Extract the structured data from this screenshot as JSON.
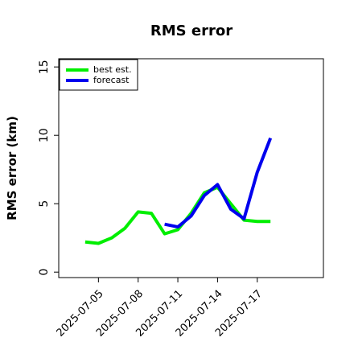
{
  "chart_data": {
    "type": "line",
    "title": "RMS error",
    "ylabel": "RMS error (km)",
    "x": [
      "2025-07-04",
      "2025-07-05",
      "2025-07-06",
      "2025-07-07",
      "2025-07-08",
      "2025-07-09",
      "2025-07-10",
      "2025-07-11",
      "2025-07-12",
      "2025-07-13",
      "2025-07-14",
      "2025-07-15",
      "2025-07-16",
      "2025-07-17",
      "2025-07-18"
    ],
    "series": [
      {
        "name": "best est.",
        "color": "#00ee00",
        "values": [
          2.2,
          2.1,
          2.5,
          3.2,
          4.4,
          4.3,
          2.8,
          3.1,
          4.3,
          5.8,
          6.2,
          5.0,
          3.8,
          3.7,
          3.7
        ]
      },
      {
        "name": "forecast",
        "color": "#0000ee",
        "values": [
          null,
          null,
          null,
          null,
          null,
          null,
          3.5,
          3.3,
          4.1,
          5.6,
          6.4,
          4.6,
          3.9,
          7.3,
          9.8
        ]
      }
    ],
    "xlim": [
      "2025-07-02",
      "2025-07-22"
    ],
    "xticks": [
      "2025-07-05",
      "2025-07-08",
      "2025-07-11",
      "2025-07-14",
      "2025-07-17"
    ],
    "ylim": [
      -0.4,
      15.6
    ],
    "yticks": [
      0,
      5,
      10,
      15
    ],
    "legend": "upper left"
  }
}
